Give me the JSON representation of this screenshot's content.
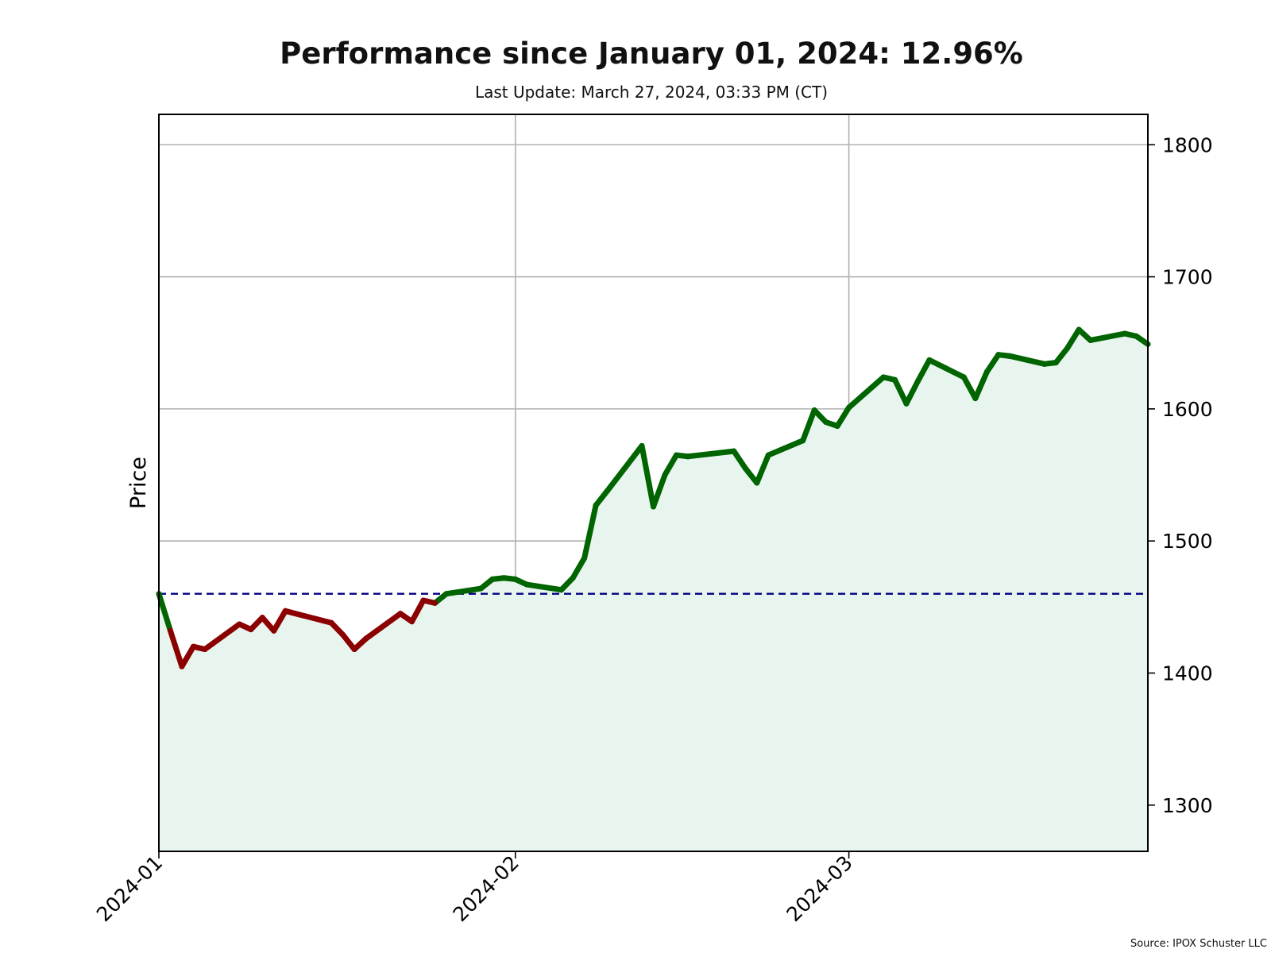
{
  "chart_data": {
    "type": "line",
    "title": "Performance since January 01, 2024: 12.96%",
    "subtitle": "Last Update: March 27, 2024, 03:33 PM (CT)",
    "ylabel": "Price",
    "xlabel": "",
    "source": "Source: IPOX Schuster LLC",
    "y_ticks": [
      1300,
      1400,
      1500,
      1600,
      1700,
      1800
    ],
    "x_ticks": [
      "2024-01",
      "2024-02",
      "2024-03"
    ],
    "x_tick_dates": [
      "2024-01-01",
      "2024-02-01",
      "2024-03-01"
    ],
    "ylim": [
      1265,
      1823
    ],
    "xlim": [
      "2024-01-01",
      "2024-03-27"
    ],
    "baseline": 1460,
    "y_axis_position": "right",
    "grid": true,
    "colors": {
      "above": "#006400",
      "below": "#8b0000",
      "fill": "#e8f5ef",
      "baseline": "#000080"
    },
    "series": [
      {
        "x": [
          "2024-01-01",
          "2024-01-02",
          "2024-01-03",
          "2024-01-04",
          "2024-01-05",
          "2024-01-08",
          "2024-01-09",
          "2024-01-10",
          "2024-01-11",
          "2024-01-12",
          "2024-01-16",
          "2024-01-17",
          "2024-01-18",
          "2024-01-19",
          "2024-01-22",
          "2024-01-23",
          "2024-01-24",
          "2024-01-25",
          "2024-01-26",
          "2024-01-29",
          "2024-01-30",
          "2024-01-31",
          "2024-02-01",
          "2024-02-02",
          "2024-02-05",
          "2024-02-06",
          "2024-02-07",
          "2024-02-08",
          "2024-02-09",
          "2024-02-12",
          "2024-02-13",
          "2024-02-14",
          "2024-02-15",
          "2024-02-16",
          "2024-02-20",
          "2024-02-21",
          "2024-02-22",
          "2024-02-23",
          "2024-02-26",
          "2024-02-27",
          "2024-02-28",
          "2024-02-29",
          "2024-03-01",
          "2024-03-04",
          "2024-03-05",
          "2024-03-06",
          "2024-03-07",
          "2024-03-08",
          "2024-03-11",
          "2024-03-12",
          "2024-03-13",
          "2024-03-14",
          "2024-03-15",
          "2024-03-18",
          "2024-03-19",
          "2024-03-20",
          "2024-03-21",
          "2024-03-22",
          "2024-03-25",
          "2024-03-26",
          "2024-03-27"
        ],
        "values": [
          1460,
          1432,
          1405,
          1420,
          1418,
          1437,
          1433,
          1442,
          1432,
          1447,
          1438,
          1429,
          1418,
          1426,
          1445,
          1439,
          1455,
          1453,
          1460,
          1464,
          1471,
          1472,
          1471,
          1467,
          1463,
          1472,
          1487,
          1527,
          1538,
          1572,
          1526,
          1550,
          1565,
          1564,
          1568,
          1555,
          1544,
          1565,
          1576,
          1599,
          1590,
          1587,
          1601,
          1624,
          1622,
          1604,
          1621,
          1637,
          1624,
          1608,
          1628,
          1641,
          1640,
          1634,
          1635,
          1646,
          1660,
          1652,
          1657,
          1655,
          1649
        ]
      }
    ]
  }
}
